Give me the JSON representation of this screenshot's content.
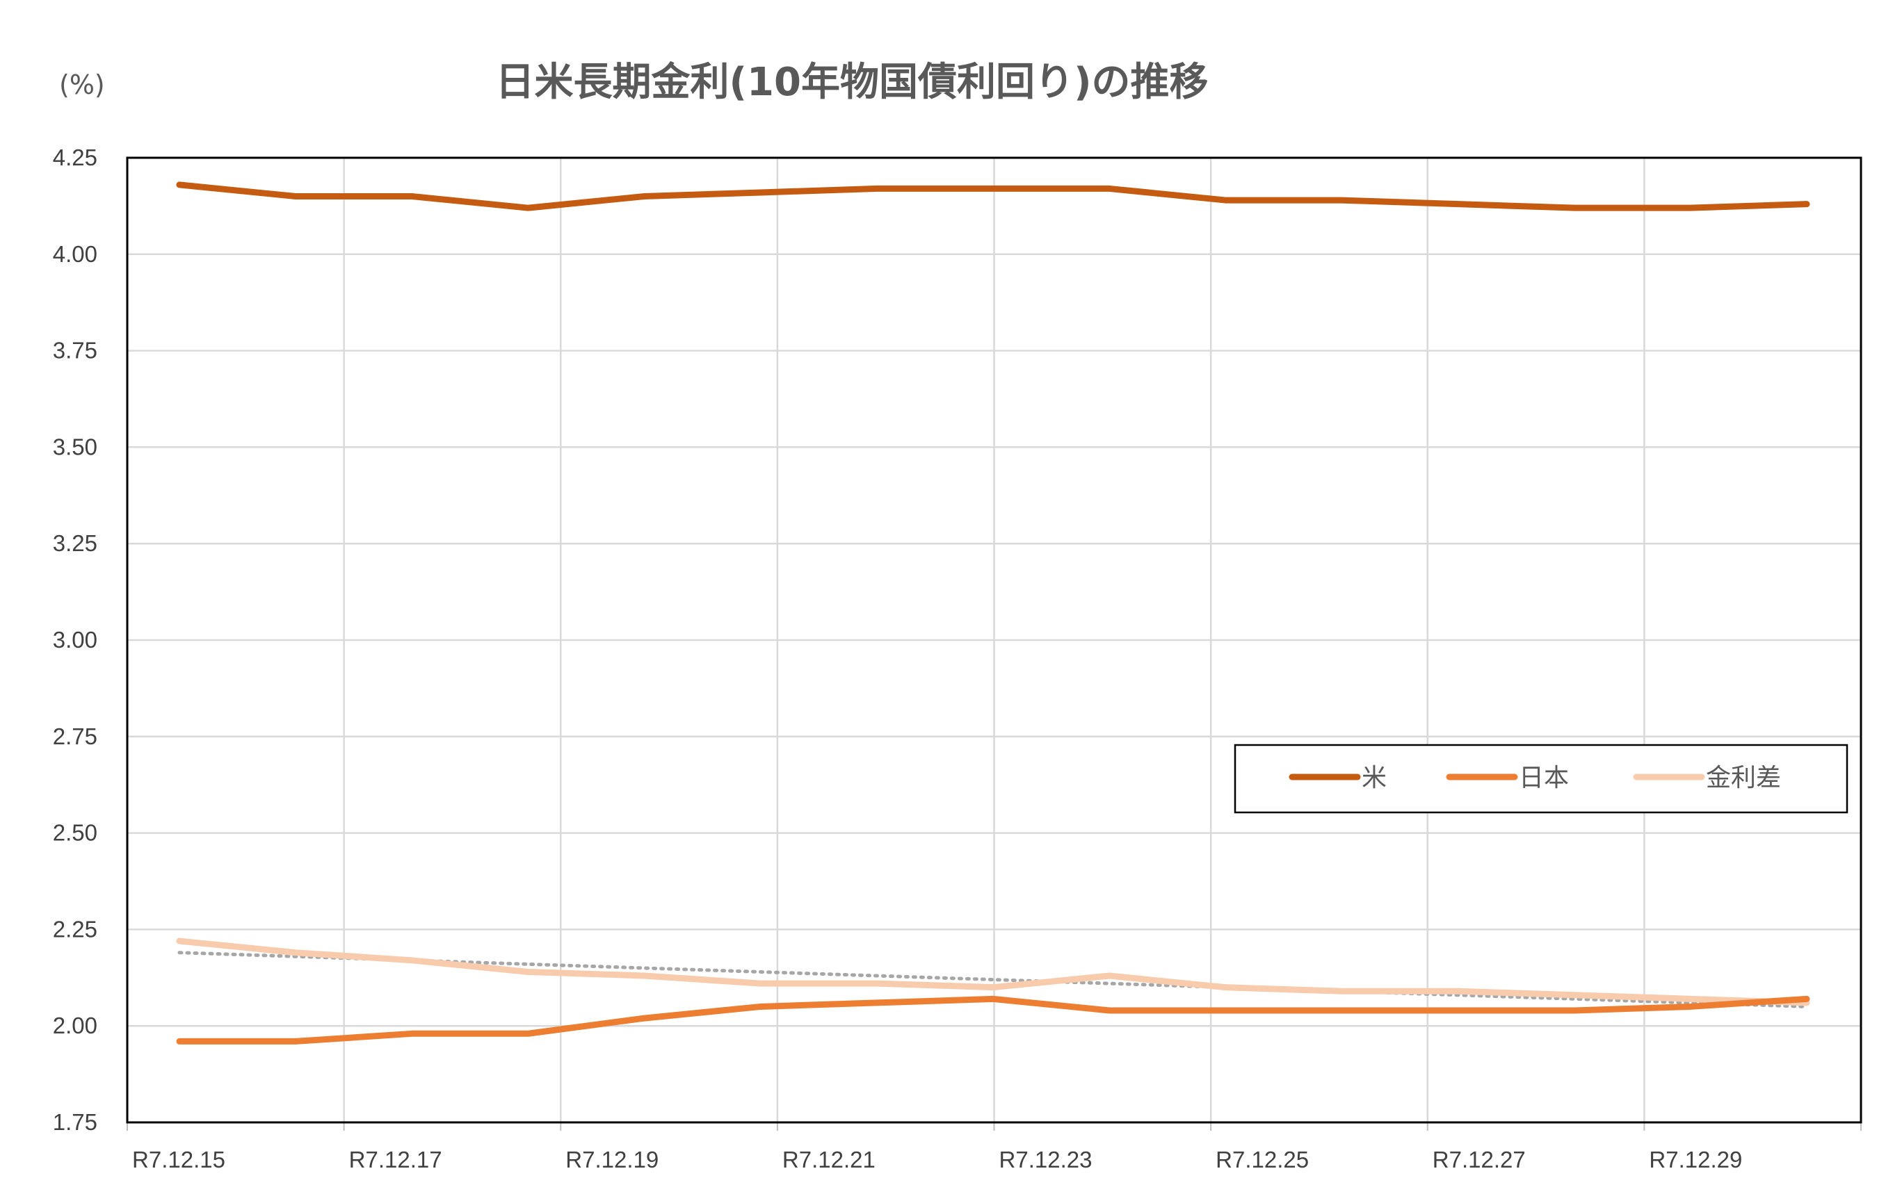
{
  "chart_data": {
    "type": "line",
    "title": "日米長期金利(10年物国債利回り)の推移",
    "unit_label": "(%)",
    "xlabel": "",
    "ylabel": "",
    "ylim": [
      1.75,
      4.25
    ],
    "y_ticks": [
      "4.25",
      "4.00",
      "3.75",
      "3.50",
      "3.25",
      "3.00",
      "2.75",
      "2.50",
      "2.25",
      "2.00",
      "1.75"
    ],
    "x_tick_labels": [
      "R7.12.15",
      "R7.12.17",
      "R7.12.19",
      "R7.12.21",
      "R7.12.23",
      "R7.12.25",
      "R7.12.27",
      "R7.12.29"
    ],
    "grid": true,
    "legend_position": "right",
    "series": [
      {
        "name": "米",
        "color": "#C55A11",
        "values": [
          4.18,
          4.15,
          4.15,
          4.12,
          4.15,
          4.16,
          4.17,
          4.17,
          4.17,
          4.14,
          4.14,
          4.13,
          4.12,
          4.12,
          4.13
        ]
      },
      {
        "name": "日本",
        "color": "#ED7D31",
        "values": [
          1.96,
          1.96,
          1.98,
          1.98,
          2.02,
          2.05,
          2.06,
          2.07,
          2.04,
          2.04,
          2.04,
          2.04,
          2.04,
          2.05,
          2.07
        ]
      },
      {
        "name": "金利差",
        "color": "#F8CBAD",
        "values": [
          2.22,
          2.19,
          2.17,
          2.14,
          2.13,
          2.11,
          2.11,
          2.1,
          2.13,
          2.1,
          2.09,
          2.09,
          2.08,
          2.07,
          2.06
        ]
      }
    ],
    "trendline": {
      "series": "金利差",
      "style": "dotted",
      "color": "#A6A6A6",
      "start": 2.19,
      "end": 2.05
    }
  }
}
